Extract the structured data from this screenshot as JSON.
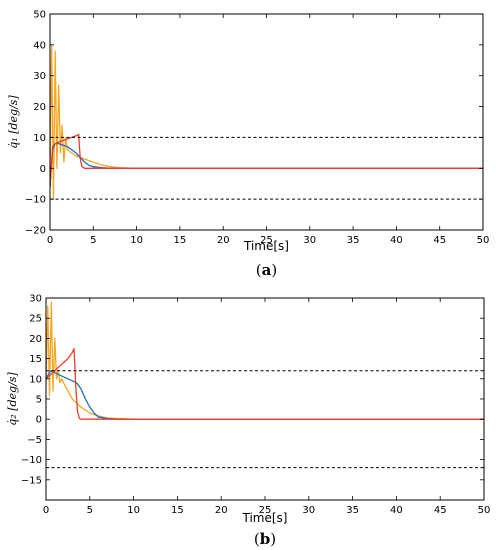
{
  "chart_data": [
    {
      "type": "line",
      "panel": "a",
      "caption_open": "(",
      "caption_letter": "a",
      "caption_close": ")",
      "xlabel": "Time[s]",
      "ylabel": "q̇₁ [deg/s]",
      "xlim": [
        0,
        50
      ],
      "ylim": [
        -20,
        50
      ],
      "xticks": [
        0,
        5,
        10,
        15,
        20,
        25,
        30,
        35,
        40,
        45,
        50
      ],
      "yticks": [
        -20,
        -10,
        0,
        10,
        20,
        30,
        40,
        50
      ],
      "ytick_labels": [
        "−20",
        "−10",
        "0",
        "10",
        "20",
        "30",
        "40",
        "50"
      ],
      "grid": false,
      "reference_lines": [
        10,
        -10
      ],
      "series": [
        {
          "color": "#f5a623",
          "x": [
            0,
            0.2,
            0.4,
            0.6,
            0.8,
            1.0,
            1.2,
            1.4,
            1.6,
            1.8,
            2.0,
            2.5,
            3.0,
            4.0,
            5.0,
            6.0,
            7.0,
            8.0,
            10,
            15,
            20,
            30,
            40,
            50
          ],
          "y": [
            -6,
            40,
            -10,
            38,
            0,
            27,
            5,
            14,
            2,
            10,
            6,
            5,
            4,
            3,
            2,
            1,
            0.5,
            0.2,
            0,
            0,
            0,
            0,
            0,
            0
          ]
        },
        {
          "color": "#1f6fc0",
          "x": [
            0,
            0.3,
            0.6,
            1.0,
            1.5,
            2.0,
            2.5,
            3.0,
            3.5,
            4.0,
            4.5,
            5.0,
            6.0,
            7.0,
            8.0,
            10,
            15,
            20,
            30,
            40,
            50
          ],
          "y": [
            -6,
            6,
            8,
            8,
            7.5,
            7,
            6,
            5,
            3.5,
            2,
            1,
            0.5,
            0.2,
            0,
            0,
            0,
            0,
            0,
            0,
            0,
            0
          ]
        },
        {
          "color": "#e8402a",
          "x": [
            0,
            0.3,
            0.6,
            1.0,
            1.5,
            2.0,
            2.5,
            3.0,
            3.3,
            3.5,
            3.7,
            4.0,
            5.0,
            6.0,
            8.0,
            10,
            15,
            20,
            25,
            30,
            35,
            40,
            45,
            50
          ],
          "y": [
            -6,
            7,
            8,
            8.5,
            9,
            9.5,
            10,
            10.5,
            11,
            3,
            0.5,
            0,
            0,
            0,
            0,
            0,
            0,
            0,
            0,
            0,
            0,
            0,
            0,
            0
          ]
        }
      ]
    },
    {
      "type": "line",
      "panel": "b",
      "caption_open": "(",
      "caption_letter": "b",
      "caption_close": ")",
      "xlabel": "Time[s]",
      "ylabel": "q̇₂ [deg/s]",
      "xlim": [
        0,
        50
      ],
      "ylim": [
        -20,
        30
      ],
      "xticks": [
        0,
        5,
        10,
        15,
        20,
        25,
        30,
        35,
        40,
        45,
        50
      ],
      "yticks": [
        -15,
        -10,
        -5,
        0,
        5,
        10,
        15,
        20,
        25,
        30
      ],
      "ytick_labels": [
        "−15",
        "−10",
        "−5",
        "0",
        "5",
        "10",
        "15",
        "20",
        "25",
        "30"
      ],
      "grid": false,
      "reference_lines": [
        12,
        -12
      ],
      "series": [
        {
          "color": "#f5a623",
          "x": [
            0,
            0.2,
            0.4,
            0.6,
            0.8,
            1.0,
            1.2,
            1.4,
            1.6,
            1.8,
            2.0,
            2.5,
            3.0,
            4.0,
            5.0,
            6.0,
            7.0,
            8.0,
            10,
            15,
            20,
            30,
            40,
            50
          ],
          "y": [
            9,
            28,
            6,
            29,
            7,
            20,
            10,
            12,
            9,
            10,
            9,
            7,
            5,
            3,
            1.5,
            0.8,
            0.3,
            0.2,
            0,
            0,
            0,
            0,
            0,
            0
          ]
        },
        {
          "color": "#1f6fc0",
          "x": [
            0,
            0.5,
            1.0,
            1.5,
            2.0,
            2.5,
            3.0,
            3.5,
            4.0,
            4.5,
            5.0,
            5.5,
            6.0,
            7.0,
            8.0,
            10,
            15,
            20,
            30,
            40,
            50
          ],
          "y": [
            10,
            12,
            11.5,
            11,
            10.5,
            10,
            9.5,
            9,
            7.5,
            5,
            3,
            1.5,
            0.5,
            0.2,
            0,
            0,
            0,
            0,
            0,
            0,
            0
          ]
        },
        {
          "color": "#e8402a",
          "x": [
            0,
            0.5,
            1.0,
            1.5,
            2.0,
            2.5,
            3.0,
            3.2,
            3.4,
            3.6,
            3.8,
            4.0,
            5.0,
            6.0,
            8.0,
            10,
            15,
            20,
            25,
            30,
            35,
            40,
            45,
            50
          ],
          "y": [
            10,
            11,
            12,
            13,
            14,
            15,
            16.5,
            17.5,
            8,
            2,
            0.2,
            0,
            0,
            0,
            0,
            0,
            0,
            0,
            0,
            0,
            0,
            0,
            0,
            0
          ]
        }
      ]
    }
  ]
}
